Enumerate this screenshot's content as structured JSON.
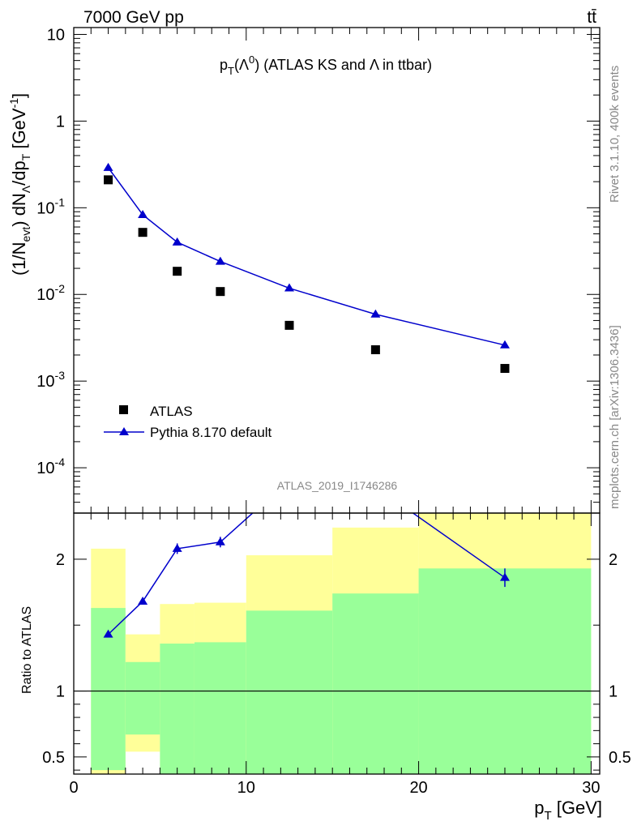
{
  "header": {
    "energy": "7000 GeV pp",
    "process": "tt̄",
    "plot_title": "p_T(Λ^0) (ATLAS KS and Λ in ttbar)",
    "analysis_id": "ATLAS_2019_I1746286",
    "side_label_top": "Rivet 3.1.10,  400k events",
    "side_label_bottom": "mcplots.cern.ch [arXiv:1306.3436]"
  },
  "axes": {
    "top_ylabel": "(1/N_evt) dN_Λ/dp_T [GeV^-1]",
    "bottom_ylabel": "Ratio to ATLAS",
    "xlabel": "p_T [GeV]",
    "top_ytick_labels": [
      "10",
      "1",
      "10^-1",
      "10^-2",
      "10^-3",
      "10^-4"
    ],
    "bottom_ytick_labels": [
      "2",
      "1",
      "0.5"
    ],
    "xtick_labels": [
      "0",
      "10",
      "20",
      "30"
    ]
  },
  "legend": {
    "data_label": "ATLAS",
    "mc_label": "Pythia 8.170 default"
  },
  "colors": {
    "mc_line": "#0000cc",
    "band_inner": "#99ff99",
    "band_outer": "#ffff99",
    "data_marker": "#000000"
  },
  "chart_data": [
    {
      "type": "scatter",
      "panel": "main",
      "x_scale": "linear",
      "y_scale": "log",
      "xlim": [
        0,
        30.5
      ],
      "ylim": [
        3e-05,
        12
      ],
      "series": [
        {
          "name": "ATLAS",
          "marker": "square",
          "x": [
            2,
            4,
            6,
            8.5,
            12.5,
            17.5,
            25
          ],
          "y": [
            0.21,
            0.052,
            0.0185,
            0.0108,
            0.0044,
            0.0023,
            0.0014
          ]
        },
        {
          "name": "Pythia 8.170 default",
          "marker": "triangle",
          "x": [
            2,
            4,
            6,
            8.5,
            12.5,
            17.5,
            25
          ],
          "y": [
            0.29,
            0.083,
            0.04,
            0.024,
            0.0118,
            0.0059,
            0.0026
          ]
        }
      ]
    },
    {
      "type": "line",
      "panel": "ratio",
      "ylabel": "Ratio to ATLAS",
      "xlim": [
        0,
        30.5
      ],
      "ylim": [
        0.37,
        2.35
      ],
      "reference_line": 1,
      "bins": [
        {
          "x0": 1,
          "x1": 3,
          "inner": [
            0.4,
            1.63
          ],
          "outer": [
            0.37,
            2.08
          ]
        },
        {
          "x0": 3,
          "x1": 5,
          "inner": [
            0.67,
            1.22
          ],
          "outer": [
            0.54,
            1.43
          ]
        },
        {
          "x0": 5,
          "x1": 7,
          "inner": [
            0.37,
            1.36
          ],
          "outer": [
            0.37,
            1.66
          ]
        },
        {
          "x0": 7,
          "x1": 10,
          "inner": [
            0.37,
            1.37
          ],
          "outer": [
            0.37,
            1.67
          ]
        },
        {
          "x0": 10,
          "x1": 15,
          "inner": [
            0.37,
            1.61
          ],
          "outer": [
            0.37,
            2.03
          ]
        },
        {
          "x0": 15,
          "x1": 20,
          "inner": [
            0.37,
            1.74
          ],
          "outer": [
            0.37,
            2.24
          ]
        },
        {
          "x0": 20,
          "x1": 30,
          "inner": [
            0.37,
            1.93
          ],
          "outer": [
            0.37,
            2.35
          ]
        }
      ],
      "series": [
        {
          "name": "Pythia 8.170 default",
          "x": [
            2,
            4,
            6,
            8.5,
            12.5,
            17.5,
            25
          ],
          "y": [
            1.43,
            1.68,
            2.08,
            2.13,
            2.6,
            2.55,
            1.86
          ],
          "yerr": [
            0.02,
            0.02,
            0.04,
            0.04,
            0.05,
            0.06,
            0.07
          ]
        }
      ]
    }
  ]
}
